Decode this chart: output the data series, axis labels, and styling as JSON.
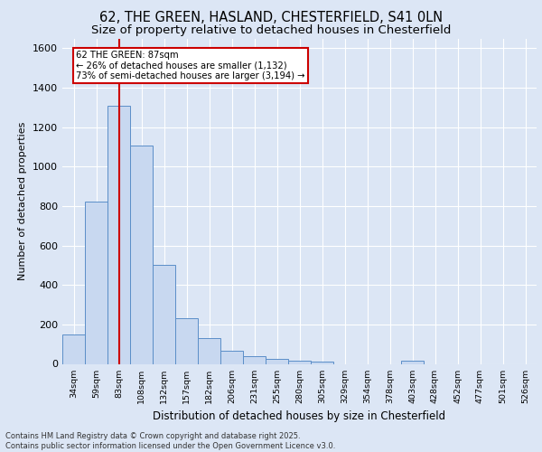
{
  "title_line1": "62, THE GREEN, HASLAND, CHESTERFIELD, S41 0LN",
  "title_line2": "Size of property relative to detached houses in Chesterfield",
  "xlabel": "Distribution of detached houses by size in Chesterfield",
  "ylabel": "Number of detached properties",
  "footer_line1": "Contains HM Land Registry data © Crown copyright and database right 2025.",
  "footer_line2": "Contains public sector information licensed under the Open Government Licence v3.0.",
  "categories": [
    "34sqm",
    "59sqm",
    "83sqm",
    "108sqm",
    "132sqm",
    "157sqm",
    "182sqm",
    "206sqm",
    "231sqm",
    "255sqm",
    "280sqm",
    "305sqm",
    "329sqm",
    "354sqm",
    "378sqm",
    "403sqm",
    "428sqm",
    "452sqm",
    "477sqm",
    "501sqm",
    "526sqm"
  ],
  "values": [
    150,
    825,
    1310,
    1105,
    500,
    232,
    130,
    65,
    38,
    25,
    15,
    12,
    0,
    0,
    0,
    18,
    0,
    0,
    0,
    0,
    0
  ],
  "bar_color": "#c8d8f0",
  "bar_edge_color": "#5b8ec8",
  "vertical_line_x": 2,
  "vertical_line_color": "#cc0000",
  "annotation_text": "62 THE GREEN: 87sqm\n← 26% of detached houses are smaller (1,132)\n73% of semi-detached houses are larger (3,194) →",
  "annotation_box_color": "#ffffff",
  "annotation_box_edge_color": "#cc0000",
  "ylim": [
    0,
    1650
  ],
  "yticks": [
    0,
    200,
    400,
    600,
    800,
    1000,
    1200,
    1400,
    1600
  ],
  "bg_color": "#dce6f5",
  "plot_bg_color": "#dce6f5",
  "grid_color": "#ffffff",
  "title_fontsize": 10.5,
  "subtitle_fontsize": 9.5
}
